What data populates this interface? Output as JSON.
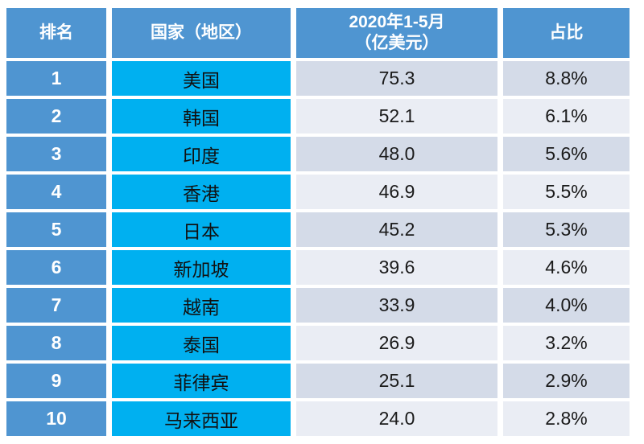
{
  "table": {
    "headers": {
      "rank": "排名",
      "country": "国家（地区）",
      "value_line1": "2020年1-5月",
      "value_line2": "（亿美元）",
      "share": "占比"
    },
    "rows": [
      {
        "rank": "1",
        "country": "美国",
        "value": "75.3",
        "share": "8.8%"
      },
      {
        "rank": "2",
        "country": "韩国",
        "value": "52.1",
        "share": "6.1%"
      },
      {
        "rank": "3",
        "country": "印度",
        "value": "48.0",
        "share": "5.6%"
      },
      {
        "rank": "4",
        "country": "香港",
        "value": "46.9",
        "share": "5.5%"
      },
      {
        "rank": "5",
        "country": "日本",
        "value": "45.2",
        "share": "5.3%"
      },
      {
        "rank": "6",
        "country": "新加坡",
        "value": "39.6",
        "share": "4.6%"
      },
      {
        "rank": "7",
        "country": "越南",
        "value": "33.9",
        "share": "4.0%"
      },
      {
        "rank": "8",
        "country": "泰国",
        "value": "26.9",
        "share": "3.2%"
      },
      {
        "rank": "9",
        "country": "菲律宾",
        "value": "25.1",
        "share": "2.9%"
      },
      {
        "rank": "10",
        "country": "马来西亚",
        "value": "24.0",
        "share": "2.8%"
      }
    ]
  },
  "colors": {
    "header_blue": "#4F95D1",
    "country_cyan": "#00B0F0",
    "band_dark": "#D4DBE8",
    "band_light": "#EAEDF4",
    "header_text": "#FFFFFF",
    "body_text": "#1A1A1A"
  },
  "chart_data": {
    "type": "table",
    "title": "",
    "columns": [
      "排名",
      "国家（地区）",
      "2020年1-5月（亿美元）",
      "占比"
    ],
    "rows": [
      [
        1,
        "美国",
        75.3,
        "8.8%"
      ],
      [
        2,
        "韩国",
        52.1,
        "6.1%"
      ],
      [
        3,
        "印度",
        48.0,
        "5.6%"
      ],
      [
        4,
        "香港",
        46.9,
        "5.5%"
      ],
      [
        5,
        "日本",
        45.2,
        "5.3%"
      ],
      [
        6,
        "新加坡",
        39.6,
        "4.6%"
      ],
      [
        7,
        "越南",
        33.9,
        "4.0%"
      ],
      [
        8,
        "泰国",
        26.9,
        "3.2%"
      ],
      [
        9,
        "菲律宾",
        25.1,
        "2.9%"
      ],
      [
        10,
        "马来西亚",
        24.0,
        "2.8%"
      ]
    ]
  }
}
